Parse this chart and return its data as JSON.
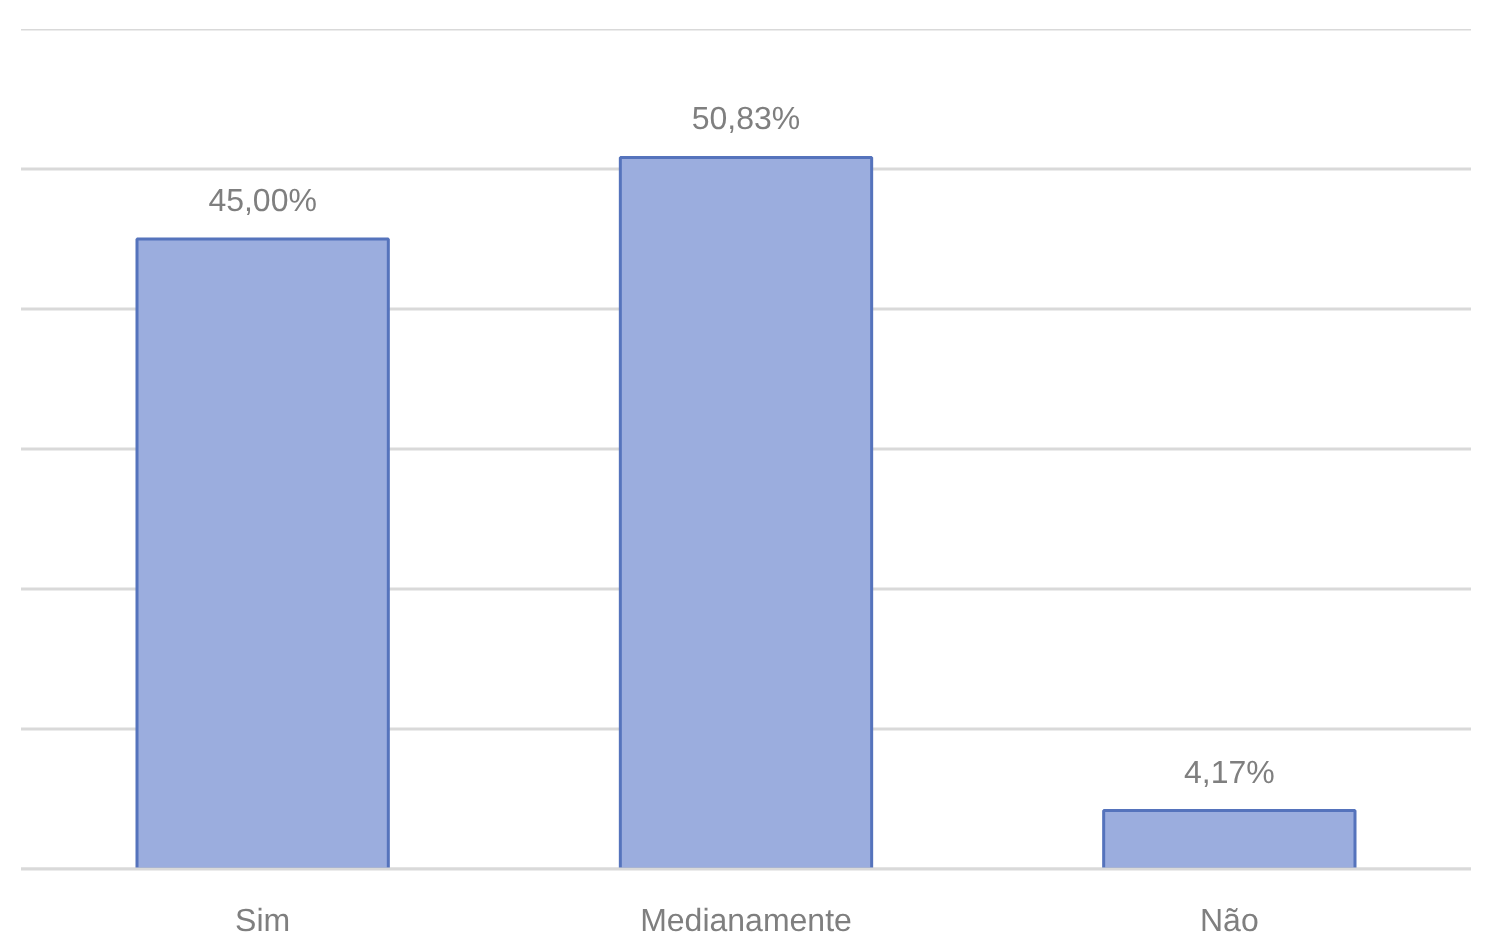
{
  "chart_data": {
    "type": "bar",
    "categories": [
      "Sim",
      "Medianamente",
      "Não"
    ],
    "values": [
      45.0,
      50.83,
      4.17
    ],
    "value_labels": [
      "45,00%",
      "50,83%",
      "4,17%"
    ],
    "color": "#9badde",
    "ylim": [
      0,
      60
    ],
    "yticks": [
      {
        "value": 0,
        "label": null
      },
      {
        "value": 10,
        "label": null
      },
      {
        "value": 20,
        "label": null
      },
      {
        "value": 30,
        "label": null
      },
      {
        "value": 40,
        "label": null
      },
      {
        "value": 50,
        "label": null
      },
      {
        "value": 60,
        "label": null
      }
    ],
    "grid": "y",
    "tick_labels": "x"
  }
}
